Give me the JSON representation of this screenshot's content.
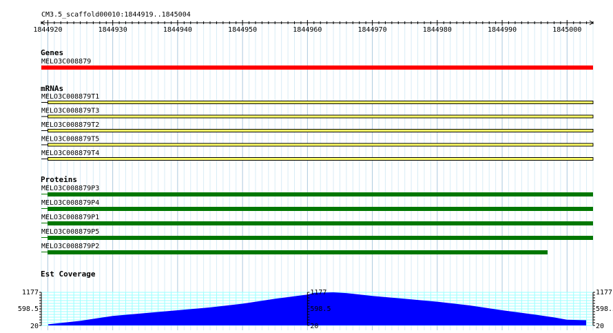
{
  "location": "CM3.5_scaffold00010:1844919..1845004",
  "ruler": {
    "ticks": [
      "1844920",
      "1844930",
      "1844940",
      "1844950",
      "1844960",
      "1844970",
      "1844980",
      "1844990",
      "1845000"
    ]
  },
  "genes": {
    "title": "Genes",
    "features": [
      {
        "name": "MELO3C008879",
        "start": 1844919,
        "end": 1845004,
        "color": "#ff0000"
      }
    ]
  },
  "mrnas": {
    "title": "mRNAs",
    "features": [
      {
        "name": "MELO3C008879T1",
        "start": 1844919,
        "end": 1845004,
        "color": "#ffff66"
      },
      {
        "name": "MELO3C008879T3",
        "start": 1844919,
        "end": 1845004,
        "color": "#ffff66"
      },
      {
        "name": "MELO3C008879T2",
        "start": 1844919,
        "end": 1845004,
        "color": "#ffff66"
      },
      {
        "name": "MELO3C008879T5",
        "start": 1844919,
        "end": 1845004,
        "color": "#ffff66"
      },
      {
        "name": "MELO3C008879T4",
        "start": 1844919,
        "end": 1845004,
        "color": "#ffff66"
      }
    ]
  },
  "proteins": {
    "title": "Proteins",
    "features": [
      {
        "name": "MELO3C008879P3",
        "start": 1844919,
        "end": 1845004,
        "color": "#007700"
      },
      {
        "name": "MELO3C008879P4",
        "start": 1844919,
        "end": 1845004,
        "color": "#007700"
      },
      {
        "name": "MELO3C008879P1",
        "start": 1844919,
        "end": 1845004,
        "color": "#007700"
      },
      {
        "name": "MELO3C008879P5",
        "start": 1844919,
        "end": 1845004,
        "color": "#007700"
      },
      {
        "name": "MELO3C008879P2",
        "start": 1844919,
        "end": 1844997,
        "color": "#007700"
      }
    ]
  },
  "coverage": {
    "title": "Est Coverage",
    "y_max": "1177",
    "y_mid": "598.5",
    "y_min": "20",
    "color": "#0000ff",
    "grid_color": "#99ffff",
    "peak_position": 1844964,
    "peak_value": 1177
  }
}
